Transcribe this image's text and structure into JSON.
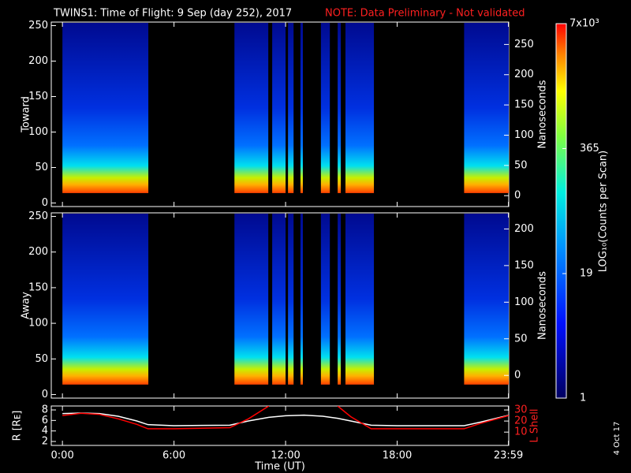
{
  "chart_data": [
    {
      "type": "spectrogram",
      "title": "TWINS1: Time of Flight:  9 Sep (day 252), 2017",
      "note": "NOTE: Data Preliminary - Not validated",
      "ylabel": "Toward",
      "y2label": "Nanoseconds",
      "xlim": [
        -0.6,
        24.0
      ],
      "ylim": [
        -5,
        255
      ],
      "yticks": [
        0,
        50,
        100,
        150,
        200,
        250
      ],
      "y2lim": [
        -18,
        287
      ],
      "y2ticks": [
        0,
        50,
        100,
        150,
        200,
        250
      ],
      "data_floor": 14,
      "intervals": [
        {
          "start": 0,
          "end": 4.62
        },
        {
          "start": 9.25,
          "end": 11.07
        },
        {
          "start": 11.28,
          "end": 12.0
        },
        {
          "start": 12.13,
          "end": 12.43
        },
        {
          "start": 12.8,
          "end": 12.93
        },
        {
          "start": 13.9,
          "end": 14.38
        },
        {
          "start": 14.8,
          "end": 14.97
        },
        {
          "start": 15.22,
          "end": 16.75
        },
        {
          "start": 21.6,
          "end": 24.0
        }
      ]
    },
    {
      "type": "spectrogram",
      "ylabel": "Away",
      "y2label": "Nanoseconds",
      "xlim": [
        -0.6,
        24.0
      ],
      "ylim": [
        -5,
        255
      ],
      "yticks": [
        0,
        50,
        100,
        150,
        200,
        250
      ],
      "y2lim": [
        -31,
        222
      ],
      "y2ticks": [
        0,
        50,
        100,
        150,
        200
      ],
      "data_floor": 14,
      "intervals": [
        {
          "start": 0,
          "end": 4.62
        },
        {
          "start": 9.25,
          "end": 11.07
        },
        {
          "start": 11.28,
          "end": 12.0
        },
        {
          "start": 12.13,
          "end": 12.43
        },
        {
          "start": 12.8,
          "end": 12.93
        },
        {
          "start": 13.9,
          "end": 14.38
        },
        {
          "start": 14.8,
          "end": 14.97
        },
        {
          "start": 15.22,
          "end": 16.75
        },
        {
          "start": 21.6,
          "end": 24.0
        }
      ]
    },
    {
      "type": "line",
      "ylabel": "R [Rᴇ]",
      "y2label": "L Shell",
      "xlabel": "Time (UT)",
      "annotation": "4 Oct 17",
      "xlim": [
        -0.6,
        24.0
      ],
      "xticks": [
        {
          "value": 0,
          "label": "0:00"
        },
        {
          "value": 6,
          "label": "6:00"
        },
        {
          "value": 12,
          "label": "12:00"
        },
        {
          "value": 18,
          "label": "18:00"
        },
        {
          "value": 23.983,
          "label": "23:59"
        }
      ],
      "ylim": [
        1.25,
        8.75
      ],
      "yticks": [
        2,
        4,
        6,
        8
      ],
      "y2lim": [
        -2,
        33.6
      ],
      "y2ticks": [
        10,
        20,
        30
      ],
      "x": [
        0,
        1,
        2,
        3,
        4,
        4.6,
        6,
        9,
        10,
        11.1,
        12,
        13,
        14,
        14.8,
        15.5,
        16.6,
        18,
        21.6,
        22.5,
        24
      ],
      "series": [
        {
          "name": "R",
          "color": "#ffffff",
          "values": [
            7.3,
            7.4,
            7.3,
            6.8,
            5.9,
            5.2,
            5.0,
            5.1,
            5.9,
            6.6,
            6.9,
            7.0,
            6.8,
            6.4,
            5.9,
            5.1,
            5.0,
            5.0,
            5.7,
            7.0
          ]
        },
        {
          "name": "L Shell",
          "color": "#ff0000",
          "axis": "y2",
          "values": [
            25,
            27,
            26,
            22,
            17,
            13,
            13,
            14,
            22,
            33.6,
            null,
            null,
            null,
            33.6,
            24,
            13,
            13,
            13,
            18,
            25
          ]
        }
      ]
    },
    {
      "type": "colorbar",
      "label": "LOG₁₀(Counts per Scan)",
      "log": true,
      "clim": [
        1,
        7000
      ],
      "ticks": [
        1,
        19,
        365,
        {
          "value": 7000,
          "label": "7x10³"
        }
      ]
    }
  ]
}
